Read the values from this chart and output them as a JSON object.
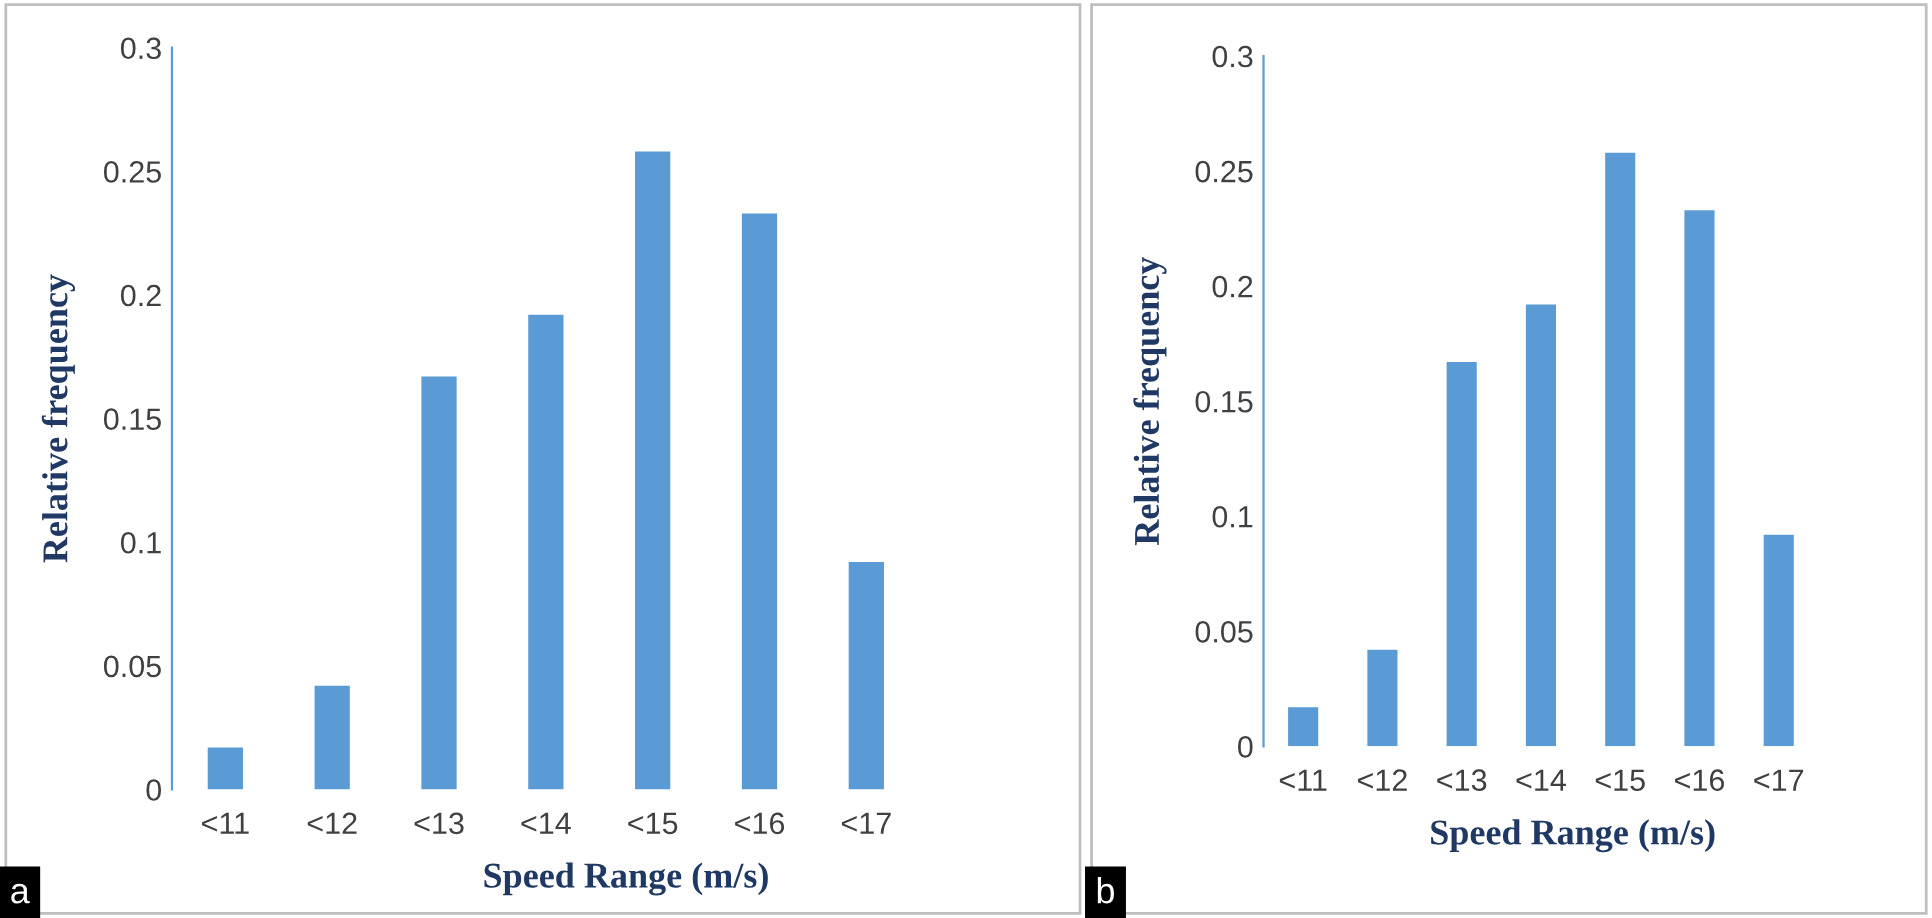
{
  "chart_data": [
    {
      "type": "bar",
      "xlabel": "Speed Range (m/s)",
      "ylabel": "Relative frequency",
      "categories": [
        "<11",
        "<12",
        "<13",
        "<14",
        "<15",
        "<16",
        "<17"
      ],
      "values": [
        0.017,
        0.042,
        0.167,
        0.192,
        0.258,
        0.233,
        0.092
      ],
      "color": "#5b9bd5",
      "ylim": [
        0,
        0.3
      ],
      "yticks": [
        0,
        0.05,
        0.1,
        0.15,
        0.2,
        0.25,
        0.3
      ],
      "grid": false,
      "annotations": [
        "a"
      ]
    },
    {
      "type": "bar",
      "xlabel": "Speed Range (m/s)",
      "ylabel": "Relative frequency",
      "categories": [
        "<11",
        "<12",
        "<13",
        "<14",
        "<15",
        "<16",
        "<17"
      ],
      "values": [
        0.017,
        0.042,
        0.167,
        0.192,
        0.258,
        0.233,
        0.092
      ],
      "color": "#5b9bd5",
      "ylim": [
        0,
        0.3
      ],
      "yticks": [
        0,
        0.05,
        0.1,
        0.15,
        0.2,
        0.25,
        0.3
      ],
      "grid": false,
      "annotations": [
        "b"
      ]
    }
  ]
}
